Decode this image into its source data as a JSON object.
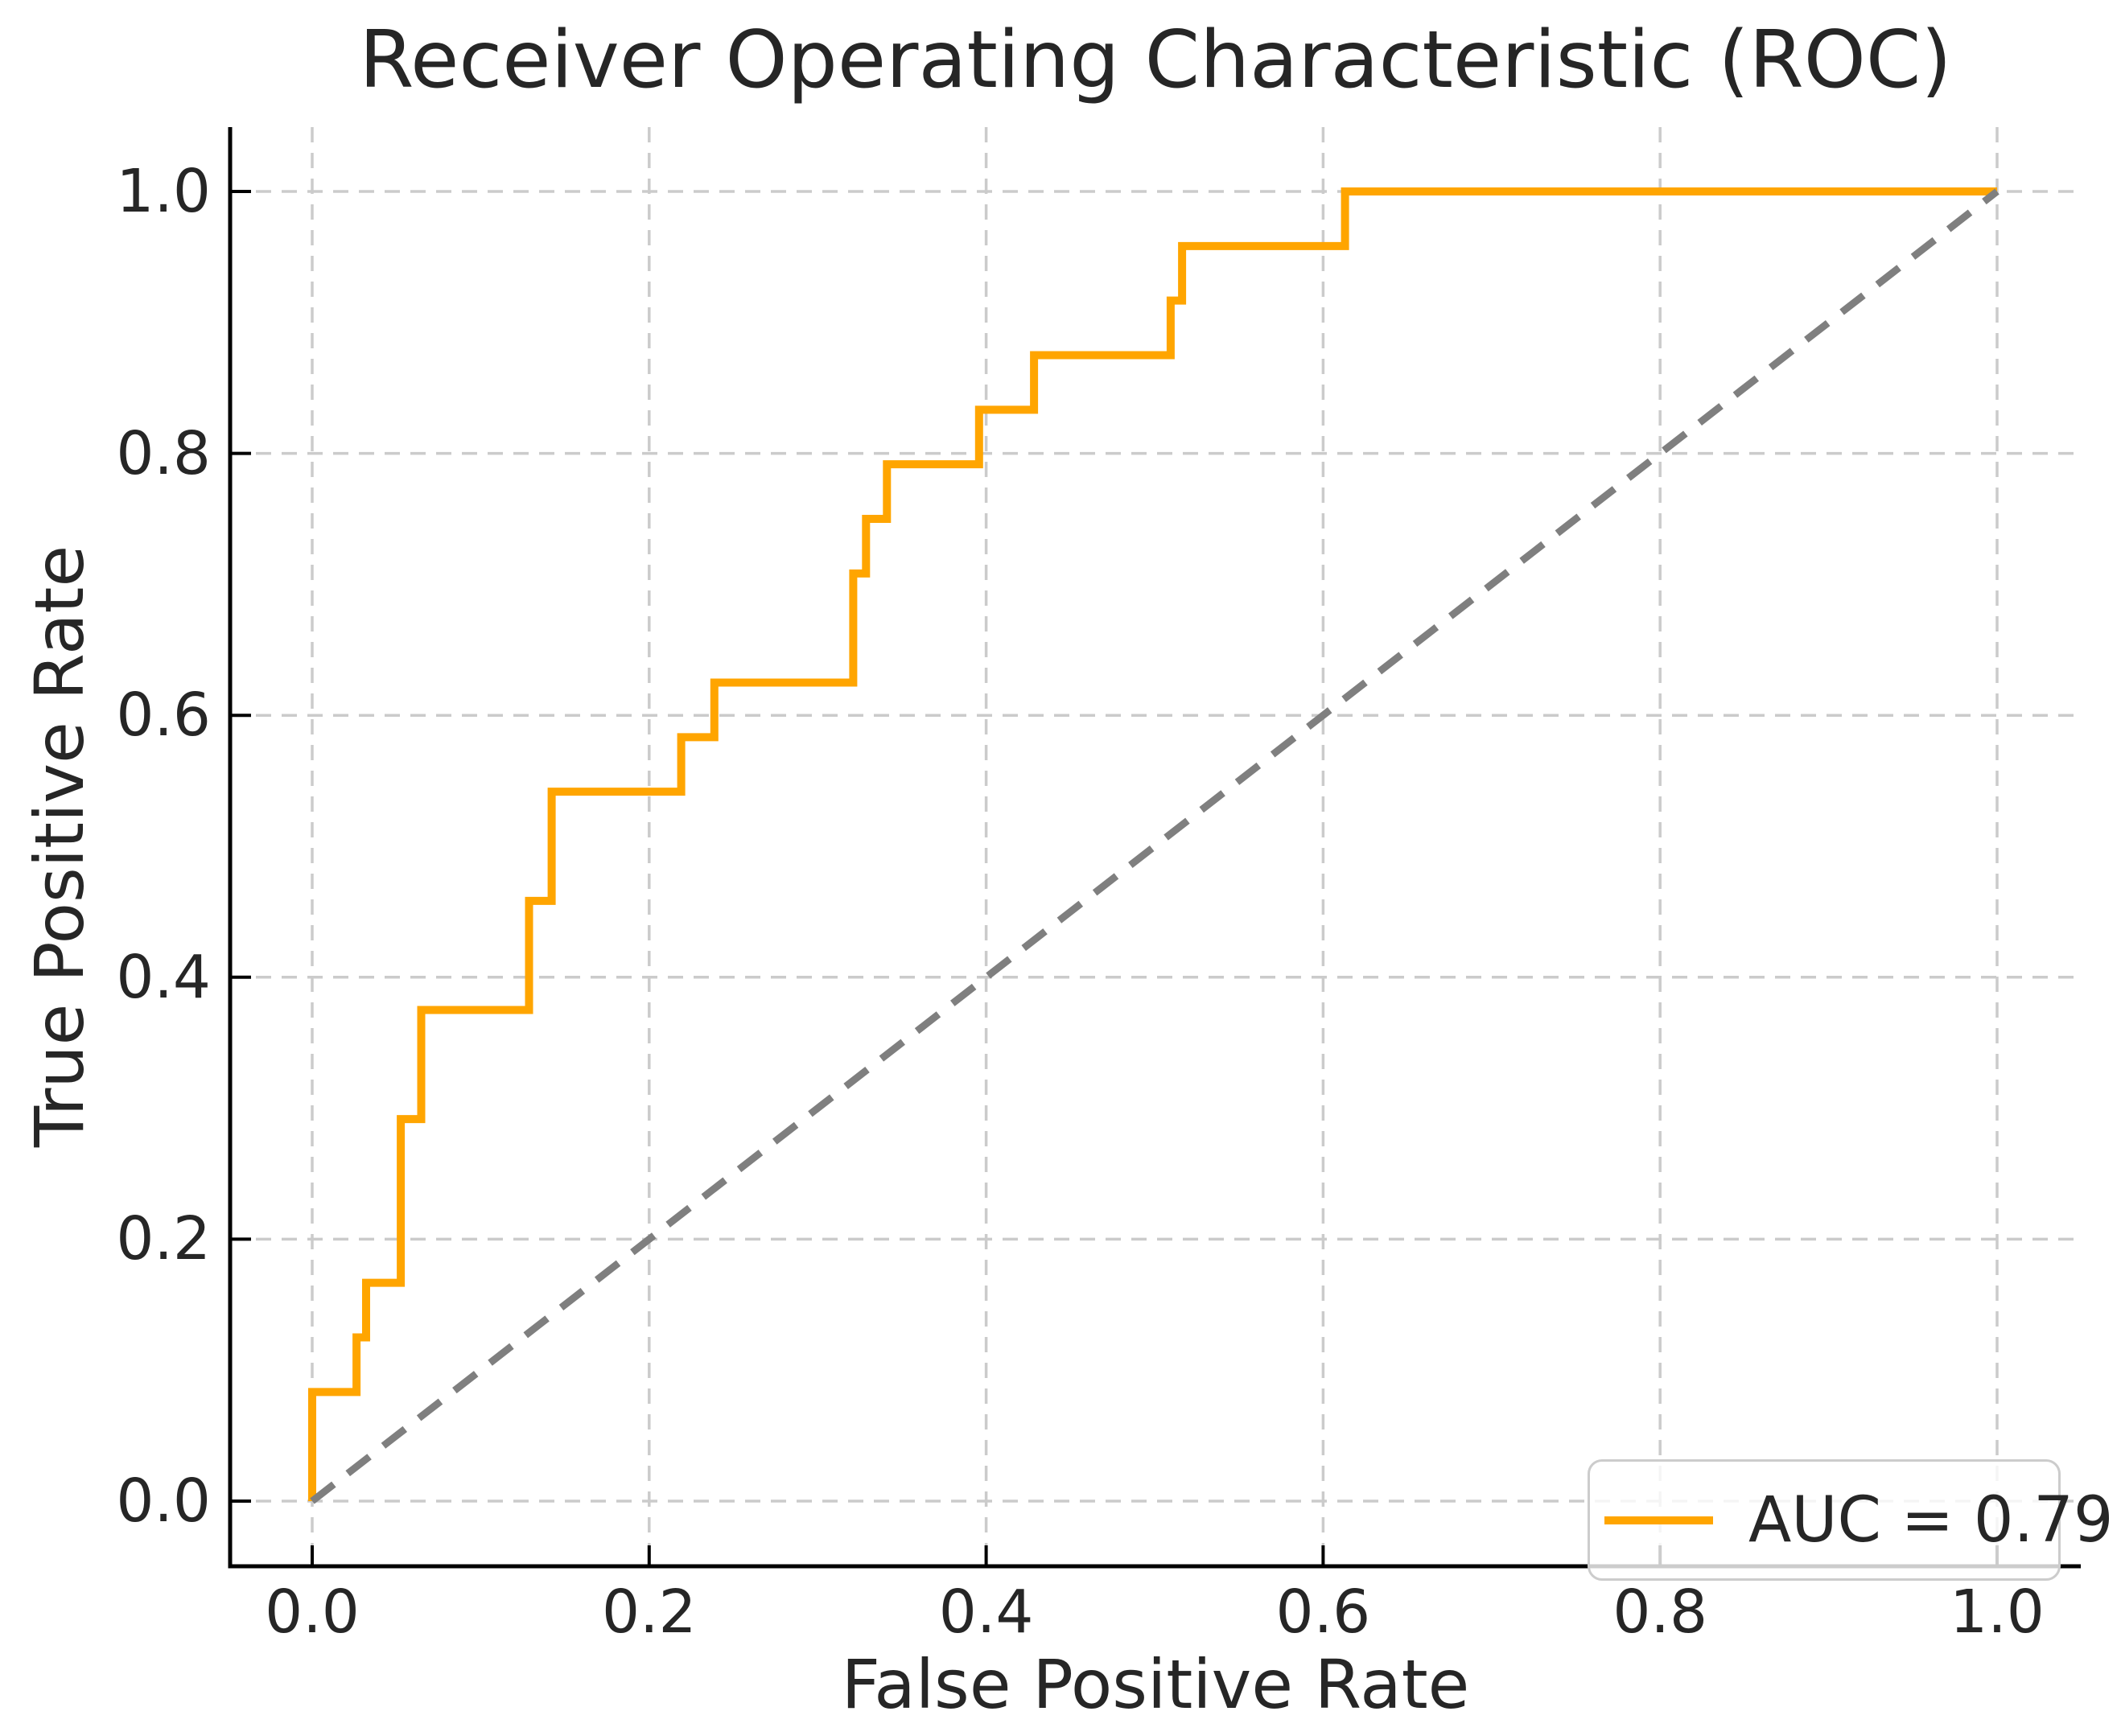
{
  "title": "Receiver Operating Characteristic (ROC)",
  "xlabel": "False Positive Rate",
  "ylabel": "True Positive Rate",
  "legend": {
    "label": "AUC = 0.79"
  },
  "colors": {
    "roc_curve": "#FFA500",
    "diagonal": "#7F7F7F",
    "grid": "#CBCBCB",
    "spine": "#000000",
    "tick": "#000000",
    "text": "#262626",
    "legend_border": "#CCCCCC",
    "legend_background": "rgba(255,255,255,0.8)"
  },
  "chart_data": {
    "type": "line",
    "title": "Receiver Operating Characteristic (ROC)",
    "xlabel": "False Positive Rate",
    "ylabel": "True Positive Rate",
    "xlim": [
      0.0,
      1.0
    ],
    "ylim": [
      0.0,
      1.0
    ],
    "grid": true,
    "grid_style": "dashed",
    "legend_position": "lower right",
    "xticks": {
      "values": [
        0.0,
        0.2,
        0.4,
        0.6,
        0.8,
        1.0
      ],
      "labels": [
        "0.0",
        "0.2",
        "0.4",
        "0.6",
        "0.8",
        "1.0"
      ]
    },
    "yticks": {
      "values": [
        0.0,
        0.2,
        0.4,
        0.6,
        0.8,
        1.0
      ],
      "labels": [
        "0.0",
        "0.2",
        "0.4",
        "0.6",
        "0.8",
        "1.0"
      ]
    },
    "series": [
      {
        "name": "ROC curve",
        "legend_entry": "AUC = 0.79",
        "auc": 0.79,
        "color": "#FFA500",
        "style": "solid",
        "line_width": 10,
        "points": [
          [
            0.0,
            0.0
          ],
          [
            0.0,
            0.0833
          ],
          [
            0.0263,
            0.0833
          ],
          [
            0.0263,
            0.125
          ],
          [
            0.032,
            0.125
          ],
          [
            0.032,
            0.1667
          ],
          [
            0.0526,
            0.1667
          ],
          [
            0.0526,
            0.2917
          ],
          [
            0.0647,
            0.2917
          ],
          [
            0.0647,
            0.375
          ],
          [
            0.1287,
            0.375
          ],
          [
            0.1287,
            0.4583
          ],
          [
            0.1421,
            0.4583
          ],
          [
            0.1421,
            0.5417
          ],
          [
            0.219,
            0.5417
          ],
          [
            0.219,
            0.5833
          ],
          [
            0.2387,
            0.5833
          ],
          [
            0.2387,
            0.625
          ],
          [
            0.3211,
            0.625
          ],
          [
            0.3211,
            0.7083
          ],
          [
            0.3287,
            0.7083
          ],
          [
            0.3287,
            0.75
          ],
          [
            0.3411,
            0.75
          ],
          [
            0.3411,
            0.7917
          ],
          [
            0.3958,
            0.7917
          ],
          [
            0.3958,
            0.8333
          ],
          [
            0.4284,
            0.8333
          ],
          [
            0.4284,
            0.875
          ],
          [
            0.5095,
            0.875
          ],
          [
            0.5095,
            0.9167
          ],
          [
            0.5163,
            0.9167
          ],
          [
            0.5163,
            0.9583
          ],
          [
            0.613,
            0.9583
          ],
          [
            0.613,
            1.0
          ],
          [
            1.0,
            1.0
          ]
        ]
      },
      {
        "name": "chance diagonal",
        "color": "#7F7F7F",
        "style": "dashed",
        "line_width": 9,
        "points": [
          [
            0.0,
            0.0
          ],
          [
            1.0,
            1.0
          ]
        ]
      }
    ]
  }
}
